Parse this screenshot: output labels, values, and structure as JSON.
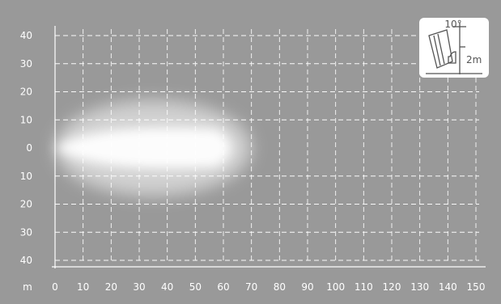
{
  "chart_data": {
    "type": "heatmap",
    "title": "",
    "x_unit_label": "m",
    "x_ticks": [
      0,
      10,
      20,
      30,
      40,
      50,
      60,
      70,
      80,
      90,
      100,
      110,
      120,
      130,
      140,
      150
    ],
    "y_ticks_top": [
      40,
      30,
      20,
      10,
      0
    ],
    "y_ticks_bottom": [
      10,
      20,
      30,
      40
    ],
    "xlim": [
      0,
      150
    ],
    "ylim": [
      -40,
      40
    ],
    "grid": true,
    "beam": {
      "near_field_length": 70,
      "near_field_half_width": 17,
      "spot_length": 68,
      "spot_half_width": 7.5
    },
    "inset": {
      "tilt_angle_label": "10°",
      "mount_height_label": "2m"
    },
    "colors": {
      "background": "#999999",
      "grid": "#ffffff",
      "text": "#ffffff",
      "beam": "#ffffff",
      "inset_bg": "#ffffff",
      "inset_stroke": "#555555"
    }
  }
}
